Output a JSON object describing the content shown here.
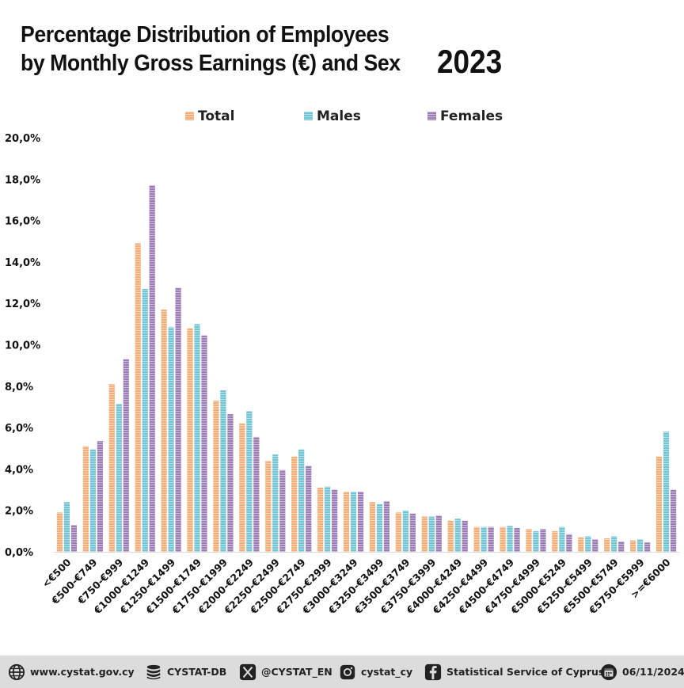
{
  "header": {
    "title_line1": "Percentage Distribution of Employees",
    "title_line2": "by Monthly Gross Earnings (€) and Sex",
    "year": "2023"
  },
  "colors": {
    "total": "#F4AE78",
    "males": "#72C5D3",
    "females": "#9D7DB5"
  },
  "chart_data": {
    "type": "bar",
    "ylim": [
      0,
      20
    ],
    "y_ticks": [
      "0,0%",
      "2,0%",
      "4,0%",
      "6,0%",
      "8,0%",
      "10,0%",
      "12,0%",
      "14,0%",
      "16,0%",
      "18,0%",
      "20,0%"
    ],
    "legend_position": "top-center",
    "grid": false,
    "categories": [
      "<€500",
      "€500-€749",
      "€750-€999",
      "€1000-€1249",
      "€1250-€1499",
      "€1500-€1749",
      "€1750-€1999",
      "€2000-€2249",
      "€2250-€2499",
      "€2500-€2749",
      "€2750-€2999",
      "€3000-€3249",
      "€3250-€3499",
      "€3500-€3749",
      "€3750-€3999",
      "€4000-€4249",
      "€4250-€4499",
      "€4500-€4749",
      "€4750-€4999",
      "€5000-€5249",
      "€5250-€5499",
      "€5500-€5749",
      "€5750-€5999",
      ">=€6000"
    ],
    "series": [
      {
        "name": "Total",
        "values": [
          1.9,
          5.1,
          8.1,
          14.9,
          11.7,
          10.8,
          7.3,
          6.2,
          4.4,
          4.6,
          3.1,
          2.9,
          2.4,
          1.9,
          1.7,
          1.5,
          1.2,
          1.2,
          1.1,
          1.0,
          0.7,
          0.65,
          0.55,
          4.6
        ]
      },
      {
        "name": "Males",
        "values": [
          2.4,
          4.95,
          7.15,
          12.7,
          10.85,
          11.0,
          7.8,
          6.8,
          4.7,
          4.95,
          3.15,
          2.9,
          2.3,
          2.0,
          1.7,
          1.6,
          1.2,
          1.25,
          1.0,
          1.2,
          0.75,
          0.75,
          0.6,
          5.8
        ]
      },
      {
        "name": "Females",
        "values": [
          1.3,
          5.35,
          9.3,
          17.7,
          12.75,
          10.45,
          6.65,
          5.55,
          3.95,
          4.15,
          3.0,
          2.9,
          2.45,
          1.85,
          1.75,
          1.5,
          1.2,
          1.15,
          1.1,
          0.85,
          0.6,
          0.5,
          0.45,
          3.0
        ]
      }
    ]
  },
  "footer": {
    "website": "www.cystat.gov.cy",
    "database": "CYSTAT-DB",
    "twitter": "@CYSTAT_EN",
    "instagram": "cystat_cy",
    "facebook": "Statistical Service of Cyprus",
    "date": "06/11/2024"
  }
}
